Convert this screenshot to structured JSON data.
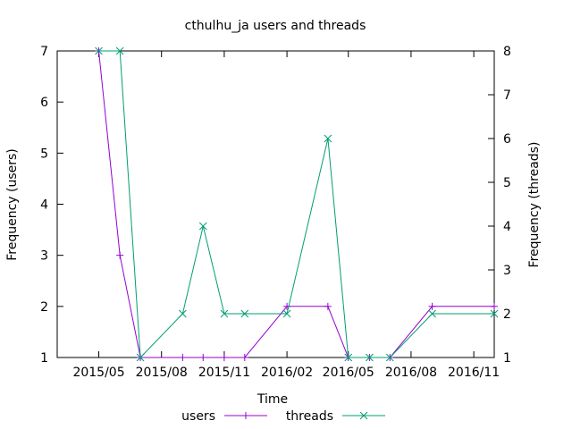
{
  "chart_data": {
    "type": "line",
    "title": "cthulhu_ja users and threads",
    "xlabel": "Time",
    "ylabel_left": "Frequency (users)",
    "ylabel_right": "Frequency (threads)",
    "x_ticks": [
      "2015/05",
      "2015/08",
      "2015/11",
      "2016/02",
      "2016/05",
      "2016/08",
      "2016/11"
    ],
    "x_tick_dates": [
      "2015-05-01",
      "2015-08-01",
      "2015-11-01",
      "2016-02-01",
      "2016-05-01",
      "2016-08-01",
      "2016-11-01"
    ],
    "xlim": [
      "2015-03-01",
      "2016-12-01"
    ],
    "y_left_ticks": [
      1,
      2,
      3,
      4,
      5,
      6,
      7
    ],
    "y_right_ticks": [
      1,
      2,
      3,
      4,
      5,
      6,
      7,
      8
    ],
    "ylim_left": [
      1,
      7
    ],
    "ylim_right": [
      1,
      8
    ],
    "legend_position": "bottom",
    "grid": false,
    "series": [
      {
        "name": "users",
        "axis": "left",
        "color": "#9400d3",
        "marker": "plus",
        "x": [
          "2015-05-01",
          "2015-06-01",
          "2015-07-01",
          "2015-09-01",
          "2015-10-01",
          "2015-11-01",
          "2015-12-01",
          "2016-02-01",
          "2016-04-01",
          "2016-05-01",
          "2016-06-01",
          "2016-07-01",
          "2016-09-01",
          "2016-12-01"
        ],
        "values": [
          7,
          3,
          1,
          1,
          1,
          1,
          1,
          2,
          2,
          1,
          1,
          1,
          2,
          2
        ]
      },
      {
        "name": "threads",
        "axis": "right",
        "color": "#009e73",
        "marker": "cross",
        "x": [
          "2015-05-01",
          "2015-06-01",
          "2015-07-01",
          "2015-09-01",
          "2015-10-01",
          "2015-11-01",
          "2015-12-01",
          "2016-02-01",
          "2016-04-01",
          "2016-05-01",
          "2016-06-01",
          "2016-07-01",
          "2016-09-01",
          "2016-12-01"
        ],
        "values": [
          8,
          8,
          1,
          2,
          4,
          2,
          2,
          2,
          6,
          1,
          1,
          1,
          2,
          2
        ]
      }
    ]
  }
}
